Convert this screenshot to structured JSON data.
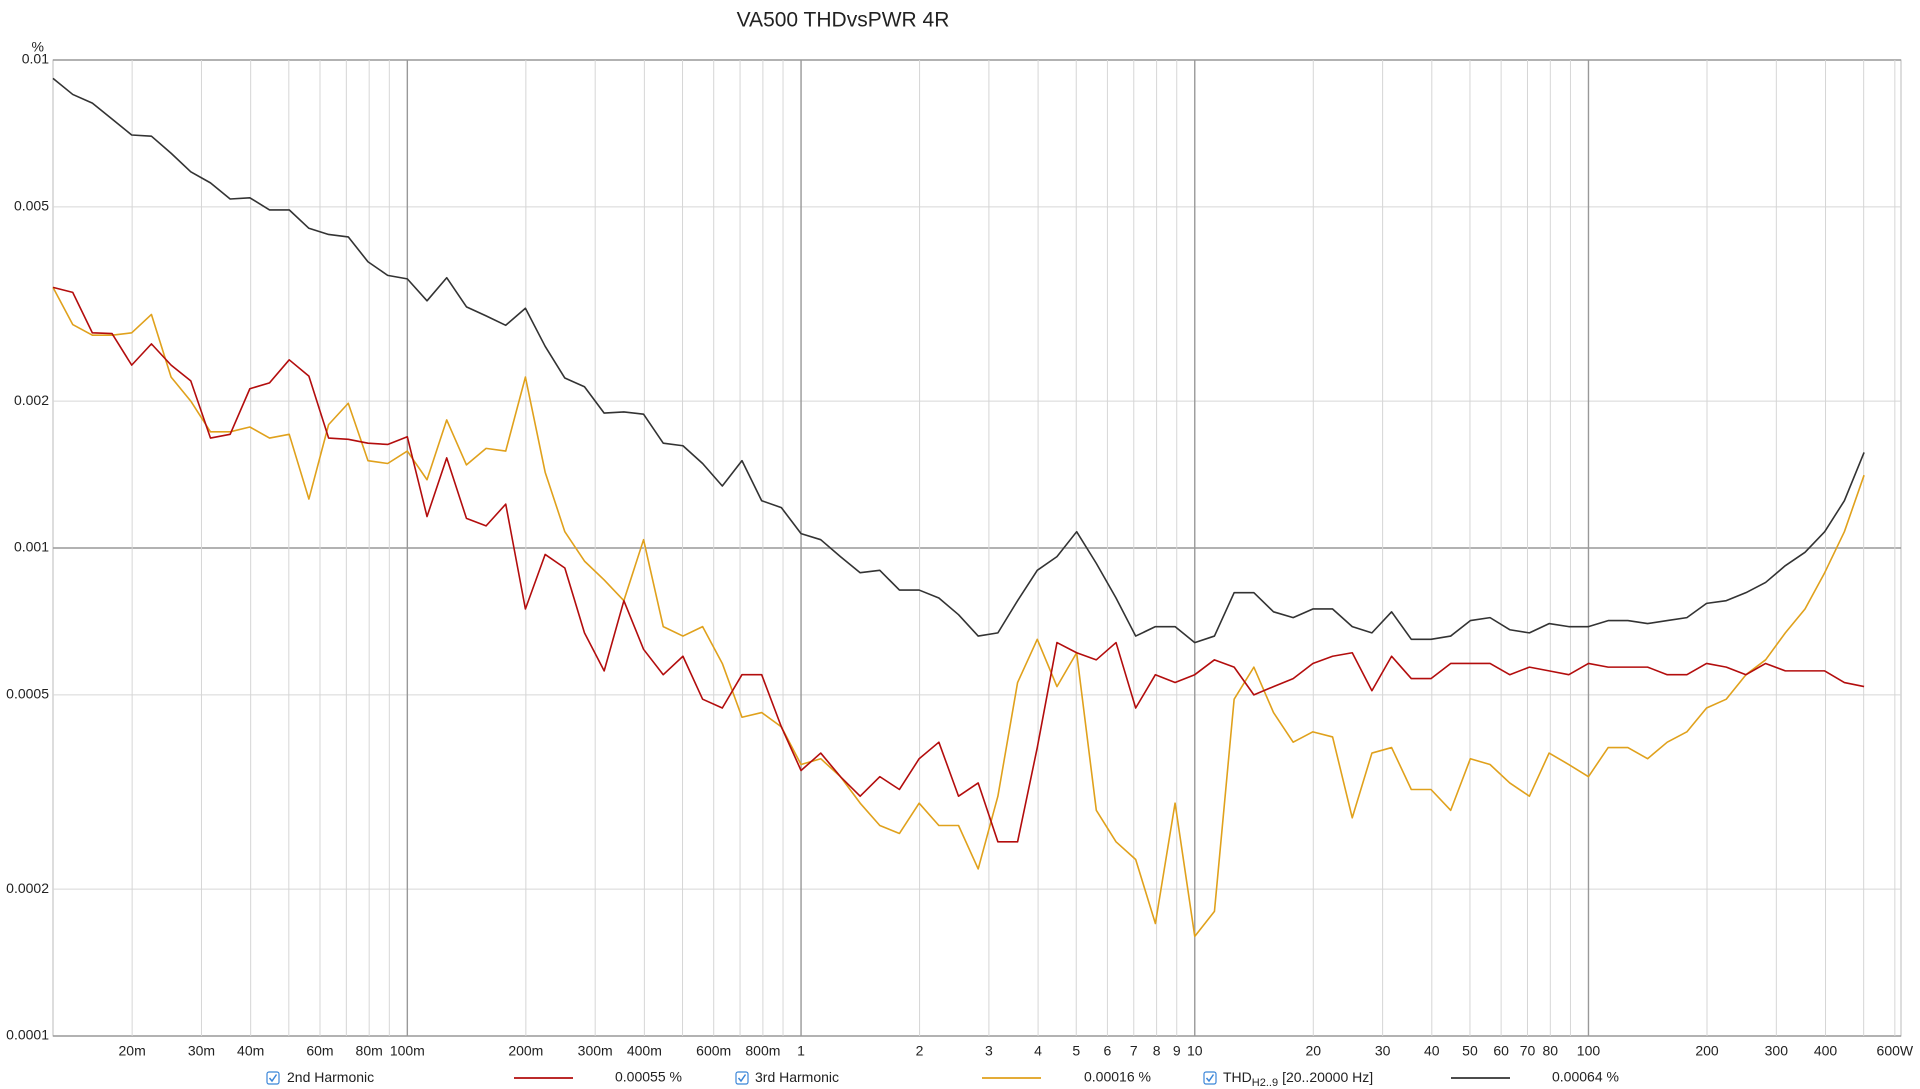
{
  "chart_data": {
    "type": "line",
    "title": "VA500 THDvsPWR 4R",
    "y_unit": "%",
    "log_x": true,
    "log_y": true,
    "grid": true,
    "xlim": [
      0.01259,
      622
    ],
    "ylim": [
      0.0001,
      0.01
    ],
    "yticks": [
      0.0001,
      0.0002,
      0.0005,
      0.001,
      0.002,
      0.005,
      0.01
    ],
    "xticks": [
      {
        "value": 0.02,
        "label": "20m"
      },
      {
        "value": 0.03,
        "label": "30m"
      },
      {
        "value": 0.04,
        "label": "40m"
      },
      {
        "value": 0.06,
        "label": "60m"
      },
      {
        "value": 0.08,
        "label": "80m"
      },
      {
        "value": 0.1,
        "label": "100m"
      },
      {
        "value": 0.2,
        "label": "200m"
      },
      {
        "value": 0.3,
        "label": "300m"
      },
      {
        "value": 0.4,
        "label": "400m"
      },
      {
        "value": 0.6,
        "label": "600m"
      },
      {
        "value": 0.8,
        "label": "800m"
      },
      1,
      2,
      3,
      4,
      5,
      6,
      7,
      8,
      9,
      10,
      20,
      30,
      40,
      50,
      60,
      70,
      80,
      100,
      200,
      300,
      400,
      {
        "value": 600,
        "label": "600W"
      }
    ],
    "xticks_minor": [
      0.05,
      0.07,
      0.09,
      0.5,
      0.7,
      0.9,
      90,
      500
    ],
    "x": [
      0.01259,
      0.01413,
      0.01585,
      0.01778,
      0.01995,
      0.02239,
      0.02512,
      0.02818,
      0.03162,
      0.03548,
      0.03981,
      0.04467,
      0.05012,
      0.05623,
      0.0631,
      0.07079,
      0.07943,
      0.08913,
      0.1,
      0.1122,
      0.1259,
      0.1413,
      0.1585,
      0.1778,
      0.1995,
      0.2239,
      0.2512,
      0.2818,
      0.3162,
      0.3548,
      0.3981,
      0.4467,
      0.5012,
      0.5623,
      0.631,
      0.7079,
      0.7943,
      0.8913,
      1,
      1.122,
      1.259,
      1.413,
      1.585,
      1.778,
      1.995,
      2.239,
      2.512,
      2.818,
      3.162,
      3.548,
      3.981,
      4.467,
      5.012,
      5.623,
      6.31,
      7.079,
      7.943,
      8.913,
      10,
      11.22,
      12.59,
      14.13,
      15.85,
      17.78,
      19.95,
      22.39,
      25.12,
      28.18,
      31.62,
      35.48,
      39.81,
      44.67,
      50.12,
      56.23,
      63.1,
      70.79,
      79.43,
      89.13,
      100,
      112.2,
      125.9,
      141.3,
      158.5,
      177.8,
      199.5,
      223.9,
      251.2,
      281.8,
      316.2,
      354.8,
      398.1,
      446.7,
      501.2
    ],
    "series": [
      {
        "name": "2nd Harmonic",
        "color": "#b30d0d",
        "legend_value": "0.00055 %",
        "values": [
          0.00342,
          0.00334,
          0.00276,
          0.00275,
          0.00237,
          0.00262,
          0.00237,
          0.0022,
          0.00168,
          0.00171,
          0.00212,
          0.00218,
          0.00243,
          0.00225,
          0.00168,
          0.00167,
          0.00164,
          0.00163,
          0.00169,
          0.00116,
          0.00153,
          0.00115,
          0.00111,
          0.00123,
          0.00075,
          0.00097,
          0.00091,
          0.00067,
          0.00056,
          0.00078,
          0.00062,
          0.00055,
          0.0006,
          0.00049,
          0.00047,
          0.00055,
          0.00055,
          0.00043,
          0.00035,
          0.00038,
          0.00034,
          0.00031,
          0.00034,
          0.00032,
          0.00037,
          0.0004,
          0.00031,
          0.00033,
          0.00025,
          0.00025,
          0.00039,
          0.00064,
          0.00061,
          0.00059,
          0.00064,
          0.00047,
          0.00055,
          0.00053,
          0.00055,
          0.00059,
          0.00057,
          0.0005,
          0.00052,
          0.00054,
          0.00058,
          0.0006,
          0.00061,
          0.00051,
          0.0006,
          0.00054,
          0.00054,
          0.00058,
          0.00058,
          0.00058,
          0.00055,
          0.00057,
          0.00056,
          0.00055,
          0.00058,
          0.00057,
          0.00057,
          0.00057,
          0.00055,
          0.00055,
          0.00058,
          0.00057,
          0.00055,
          0.00058,
          0.00056,
          0.00056,
          0.00056,
          0.00053,
          0.00052
        ]
      },
      {
        "name": "3rd Harmonic",
        "color": "#e0a11c",
        "legend_value": "0.00016 %",
        "values": [
          0.00342,
          0.00287,
          0.00273,
          0.00273,
          0.00276,
          0.00301,
          0.00224,
          0.002,
          0.00173,
          0.00173,
          0.00177,
          0.00168,
          0.00171,
          0.00126,
          0.00179,
          0.00198,
          0.00151,
          0.00149,
          0.00158,
          0.00138,
          0.00183,
          0.00148,
          0.0016,
          0.00158,
          0.00224,
          0.00143,
          0.00108,
          0.00094,
          0.00086,
          0.00078,
          0.00104,
          0.00069,
          0.00066,
          0.00069,
          0.00058,
          0.00045,
          0.00046,
          0.00043,
          0.00036,
          0.00037,
          0.00034,
          0.0003,
          0.00027,
          0.00026,
          0.0003,
          0.00027,
          0.00027,
          0.00022,
          0.00031,
          0.00053,
          0.00065,
          0.00052,
          0.00061,
          0.00029,
          0.00025,
          0.00023,
          0.00017,
          0.0003,
          0.00016,
          0.00018,
          0.00049,
          0.00057,
          0.00046,
          0.0004,
          0.00042,
          0.00041,
          0.00028,
          0.00038,
          0.00039,
          0.00032,
          0.00032,
          0.00029,
          0.00037,
          0.00036,
          0.00033,
          0.00031,
          0.00038,
          0.00036,
          0.00034,
          0.00039,
          0.00039,
          0.00037,
          0.0004,
          0.00042,
          0.00047,
          0.00049,
          0.00055,
          0.00059,
          0.00067,
          0.00075,
          0.00089,
          0.00108,
          0.00141
        ]
      },
      {
        "name": "THD",
        "name_subscript": "H2..9",
        "name_suffix": "[20..20000 Hz]",
        "color": "#333333",
        "legend_value": "0.00064 %",
        "values": [
          0.00917,
          0.0085,
          0.00816,
          0.00757,
          0.00702,
          0.00698,
          0.00644,
          0.0059,
          0.0056,
          0.00519,
          0.00522,
          0.00493,
          0.00493,
          0.00452,
          0.00439,
          0.00434,
          0.00386,
          0.00362,
          0.00356,
          0.00321,
          0.00358,
          0.00312,
          0.00299,
          0.00286,
          0.0031,
          0.00259,
          0.00223,
          0.00214,
          0.00189,
          0.0019,
          0.00188,
          0.00164,
          0.00162,
          0.00149,
          0.00134,
          0.00151,
          0.00125,
          0.00121,
          0.00107,
          0.00104,
          0.00096,
          0.00089,
          0.0009,
          0.00082,
          0.00082,
          0.00079,
          0.00073,
          0.00066,
          0.00067,
          0.00078,
          0.0009,
          0.00096,
          0.00108,
          0.00093,
          0.00079,
          0.00066,
          0.00069,
          0.00069,
          0.00064,
          0.00066,
          0.00081,
          0.00081,
          0.00074,
          0.00072,
          0.00075,
          0.00075,
          0.00069,
          0.00067,
          0.00074,
          0.00065,
          0.00065,
          0.00066,
          0.00071,
          0.00072,
          0.00068,
          0.00067,
          0.0007,
          0.00069,
          0.00069,
          0.00071,
          0.00071,
          0.0007,
          0.00071,
          0.00072,
          0.00077,
          0.00078,
          0.00081,
          0.00085,
          0.00092,
          0.00098,
          0.00108,
          0.00125,
          0.00157
        ]
      }
    ]
  }
}
